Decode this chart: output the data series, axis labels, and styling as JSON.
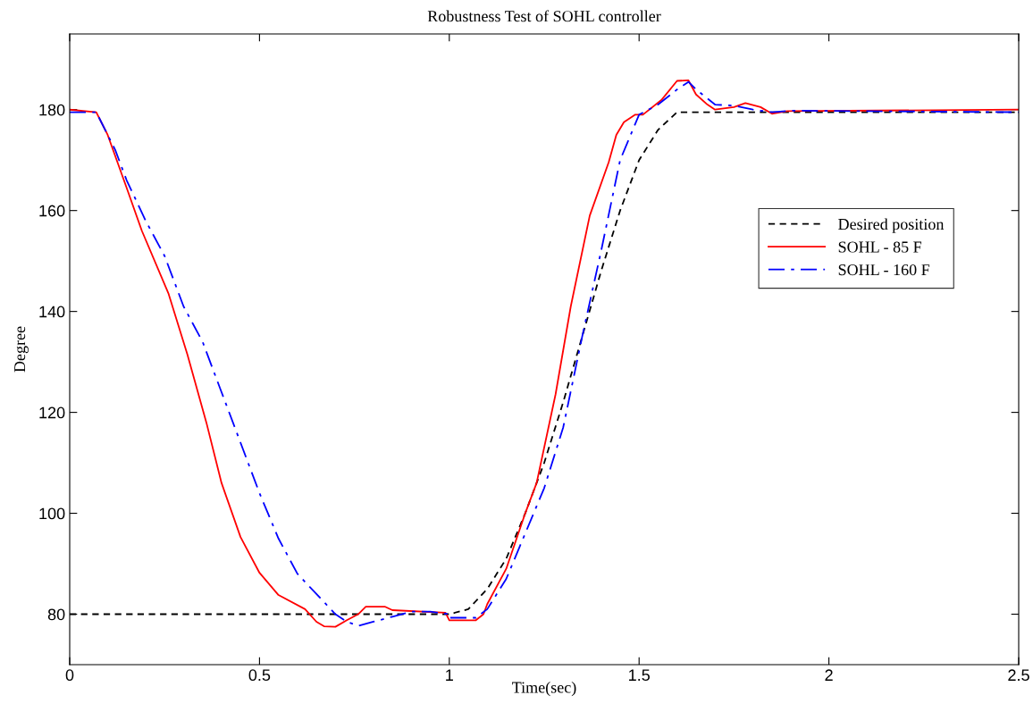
{
  "chart_data": {
    "type": "line",
    "title": "Robustness Test of SOHL controller",
    "xlabel": "Time(sec)",
    "ylabel": "Degree",
    "xlim": [
      0,
      2.5
    ],
    "ylim": [
      70,
      195
    ],
    "xticks": [
      0,
      0.5,
      1,
      1.5,
      2,
      2.5
    ],
    "yticks": [
      80,
      100,
      120,
      140,
      160,
      180
    ],
    "grid": false,
    "legend": "right",
    "marker": "none",
    "series": [
      {
        "name": "Desired position",
        "color": "#000000",
        "line_style": "dashed",
        "x": [
          0,
          1.0,
          1.05,
          1.1,
          1.15,
          1.2,
          1.25,
          1.3,
          1.35,
          1.4,
          1.45,
          1.5,
          1.55,
          1.6,
          2.5
        ],
        "values": [
          80,
          80,
          81,
          85,
          91,
          100,
          110,
          122,
          135,
          148,
          160,
          170,
          176,
          179.5,
          179.5
        ]
      },
      {
        "name": "SOHL - 85 F",
        "color": "#ff0000",
        "line_style": "solid",
        "x": [
          0,
          0.07,
          0.1,
          0.15,
          0.19,
          0.26,
          0.31,
          0.36,
          0.4,
          0.45,
          0.5,
          0.55,
          0.62,
          0.65,
          0.67,
          0.7,
          0.73,
          0.76,
          0.78,
          0.83,
          0.85,
          0.99,
          1.0,
          1.07,
          1.09,
          1.1,
          1.15,
          1.2,
          1.23,
          1.28,
          1.32,
          1.37,
          1.42,
          1.44,
          1.46,
          1.49,
          1.51,
          1.56,
          1.6,
          1.63,
          1.65,
          1.68,
          1.7,
          1.75,
          1.78,
          1.82,
          1.85,
          1.89,
          2.5
        ],
        "values": [
          180,
          179.5,
          175,
          164.5,
          156,
          143.6,
          131.5,
          118,
          106,
          95.3,
          88.2,
          83.8,
          81,
          78.5,
          77.6,
          77.5,
          78.8,
          80,
          81.5,
          81.5,
          80.8,
          80.3,
          78.8,
          78.8,
          80,
          82,
          89,
          100,
          106,
          123.6,
          141,
          159,
          169.6,
          175,
          177.5,
          179,
          179,
          182,
          185.7,
          185.8,
          183,
          181,
          180,
          180.5,
          181.3,
          180.5,
          179.2,
          179.7,
          180
        ]
      },
      {
        "name": "SOHL - 160 F",
        "color": "#0000ff",
        "line_style": "dashdot",
        "x": [
          0,
          0.07,
          0.12,
          0.15,
          0.2,
          0.25,
          0.3,
          0.35,
          0.4,
          0.45,
          0.5,
          0.55,
          0.6,
          0.65,
          0.7,
          0.73,
          0.76,
          0.8,
          0.85,
          0.9,
          0.95,
          1.0,
          1.0,
          1.07,
          1.1,
          1.15,
          1.2,
          1.25,
          1.3,
          1.35,
          1.4,
          1.45,
          1.5,
          1.55,
          1.6,
          1.63,
          1.65,
          1.7,
          1.75,
          1.8,
          1.85,
          1.9,
          2.5
        ],
        "values": [
          179.5,
          179.5,
          172,
          166,
          158,
          151,
          141,
          134,
          124,
          114,
          104,
          95,
          88,
          84,
          80,
          78.5,
          77.7,
          78.5,
          79.5,
          80.5,
          80.5,
          80,
          79.3,
          79.3,
          81,
          87,
          96,
          105,
          117,
          135,
          152,
          170,
          179,
          181,
          184,
          185.5,
          184,
          181,
          180.8,
          180,
          179.5,
          179.8,
          179.5
        ]
      }
    ]
  }
}
